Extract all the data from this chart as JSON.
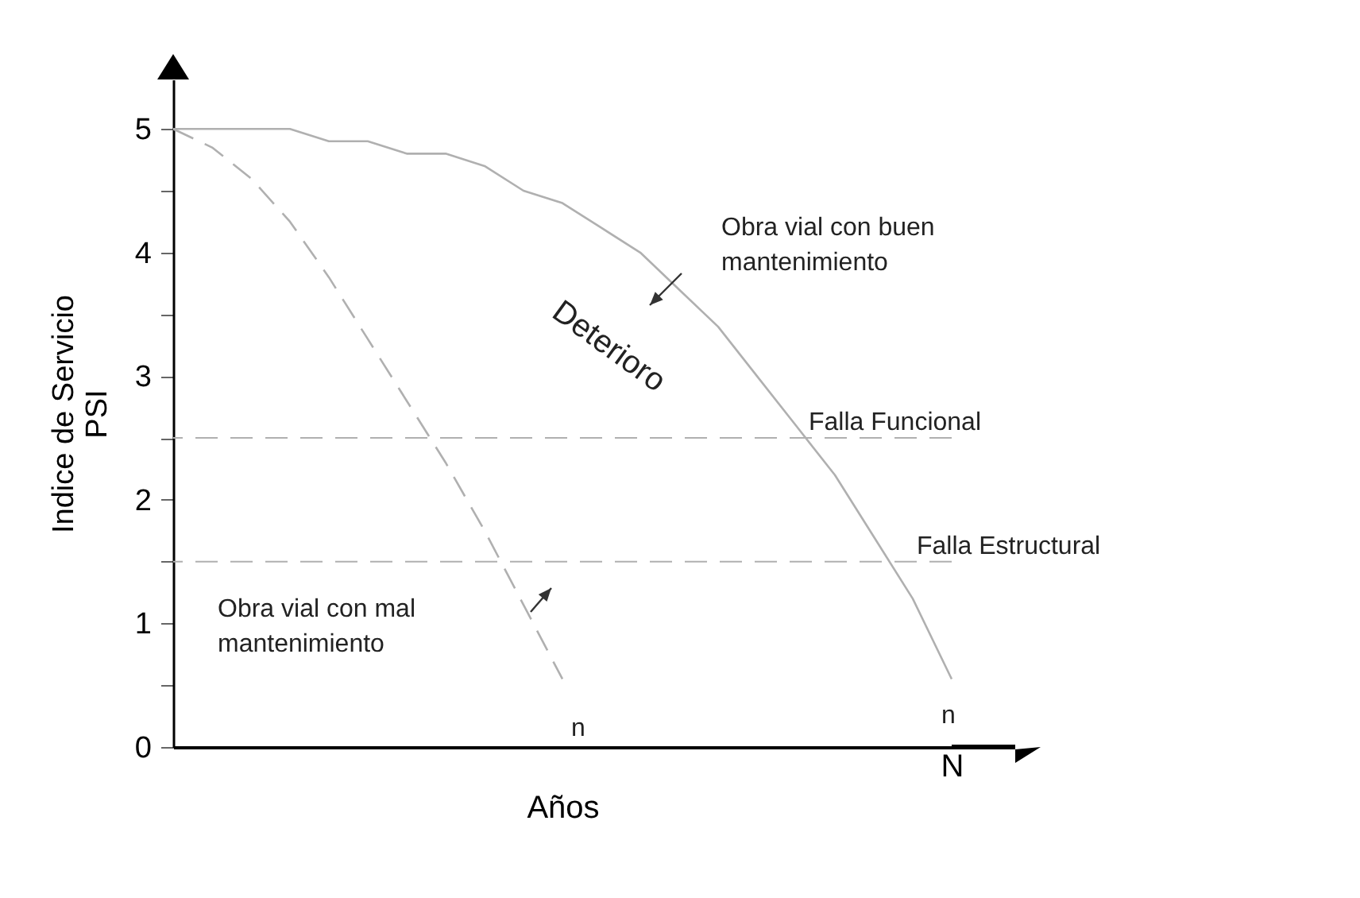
{
  "chart_data": {
    "type": "line",
    "categories": [
      null,
      null,
      null,
      null,
      null,
      null,
      null,
      null,
      null,
      null,
      null,
      null,
      null,
      null,
      null,
      null,
      null,
      null,
      null,
      null,
      "N"
    ],
    "series": [
      {
        "color": "#b0b0b0",
        "line_style": "solid",
        "values": [
          5.0,
          5.0,
          5.0,
          5.0,
          4.9,
          4.9,
          4.8,
          4.8,
          4.7,
          4.5,
          4.4,
          4.2,
          4.0,
          3.7,
          3.4,
          3.0,
          2.6,
          2.2,
          1.7,
          1.2,
          0.55
        ]
      },
      {
        "color": "#b0b0b0",
        "line_style": "dashed",
        "values": [
          5.0,
          4.85,
          4.6,
          4.25,
          3.8,
          3.3,
          2.8,
          2.3,
          1.75,
          1.15,
          0.55,
          null,
          null,
          null,
          null,
          null,
          null,
          null,
          null,
          null,
          null
        ]
      }
    ],
    "ylim": [
      0,
      5.4
    ],
    "yticks": [
      0,
      {
        "value": 0.5,
        "label": null
      },
      1,
      {
        "value": 1.5,
        "label": null
      },
      2,
      {
        "value": 2.5,
        "label": null
      },
      3,
      {
        "value": 3.5,
        "label": null
      },
      4,
      {
        "value": 4.5,
        "label": null
      },
      5
    ],
    "xlabel": "Años",
    "ylabel": "Indice de Servicio\nPSI",
    "ref_lines": [
      {
        "axis": "y",
        "value": 2.5,
        "label": "Falla Funcional",
        "color": "#b0b0b0",
        "line_style": "dashed"
      },
      {
        "axis": "y",
        "value": 1.5,
        "label": "Falla Estructural",
        "color": "#b0b0b0",
        "line_style": "dashed"
      }
    ],
    "annotations": [
      "Obra vial con buen\nmantenimiento",
      "Deterioro",
      "Obra vial con mal\nmantenimiento",
      "n",
      "n"
    ],
    "grid": false
  }
}
